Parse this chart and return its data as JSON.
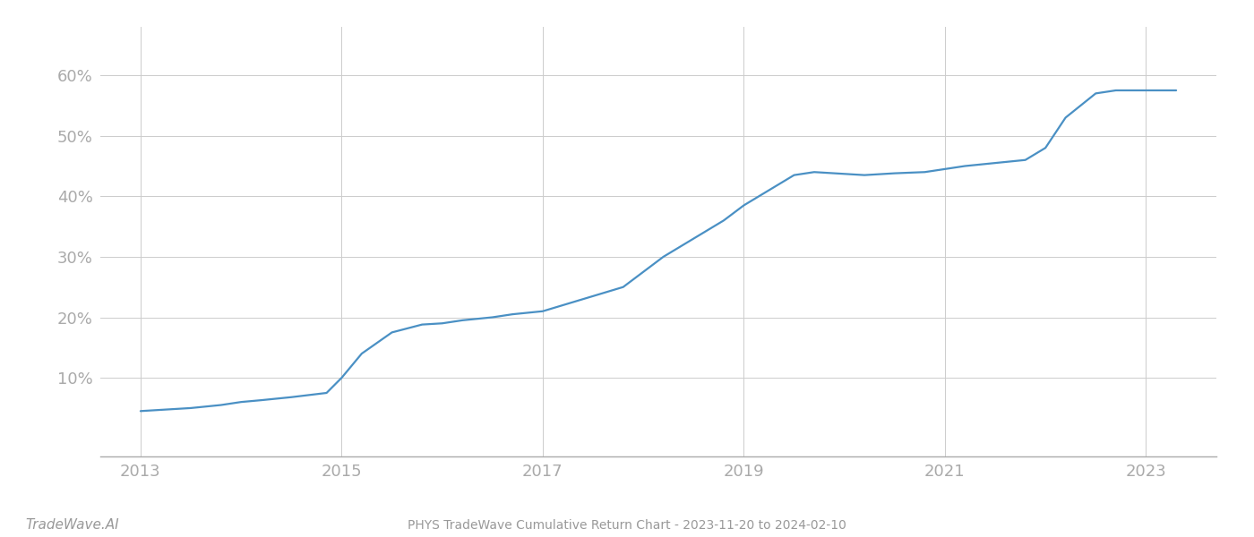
{
  "title": "PHYS TradeWave Cumulative Return Chart - 2023-11-20 to 2024-02-10",
  "watermark": "TradeWave.AI",
  "line_color": "#4a90c4",
  "background_color": "#ffffff",
  "grid_color": "#cccccc",
  "x_years": [
    2013.0,
    2013.2,
    2013.5,
    2013.8,
    2014.0,
    2014.2,
    2014.5,
    2014.7,
    2014.85,
    2015.0,
    2015.2,
    2015.5,
    2015.8,
    2016.0,
    2016.2,
    2016.5,
    2016.7,
    2017.0,
    2017.2,
    2017.5,
    2017.8,
    2018.0,
    2018.2,
    2018.5,
    2018.8,
    2019.0,
    2019.2,
    2019.5,
    2019.7,
    2019.9,
    2020.2,
    2020.5,
    2020.8,
    2021.0,
    2021.2,
    2021.5,
    2021.8,
    2022.0,
    2022.2,
    2022.5,
    2022.7,
    2023.0,
    2023.3
  ],
  "y_values": [
    4.5,
    4.7,
    5.0,
    5.5,
    6.0,
    6.3,
    6.8,
    7.2,
    7.5,
    10.0,
    14.0,
    17.5,
    18.8,
    19.0,
    19.5,
    20.0,
    20.5,
    21.0,
    22.0,
    23.5,
    25.0,
    27.5,
    30.0,
    33.0,
    36.0,
    38.5,
    40.5,
    43.5,
    44.0,
    43.8,
    43.5,
    43.8,
    44.0,
    44.5,
    45.0,
    45.5,
    46.0,
    48.0,
    53.0,
    57.0,
    57.5,
    57.5,
    57.5
  ],
  "xtick_years": [
    2013,
    2015,
    2017,
    2019,
    2021,
    2023
  ],
  "ytick_values": [
    10,
    20,
    30,
    40,
    50,
    60
  ],
  "ytick_labels": [
    "10%",
    "20%",
    "30%",
    "40%",
    "50%",
    "60%"
  ],
  "xlim": [
    2012.6,
    2023.7
  ],
  "ylim": [
    -3,
    68
  ],
  "line_width": 1.6,
  "tick_color": "#aaaaaa",
  "footer_color": "#999999"
}
